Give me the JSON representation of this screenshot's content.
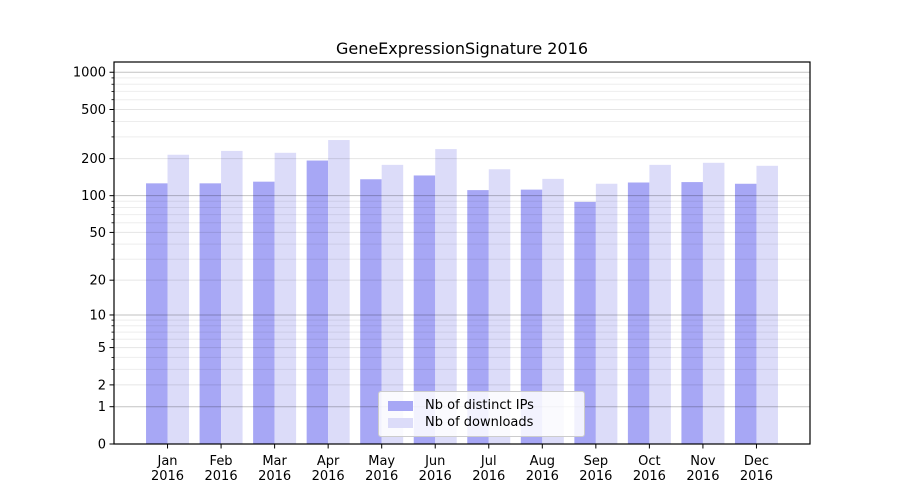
{
  "chart_data": {
    "type": "bar",
    "title": "GeneExpressionSignature 2016",
    "categories": [
      "Jan",
      "Feb",
      "Mar",
      "Apr",
      "May",
      "Jun",
      "Jul",
      "Aug",
      "Sep",
      "Oct",
      "Nov",
      "Dec"
    ],
    "category_year": "2016",
    "series": [
      {
        "name": "Nb of distinct IPs",
        "color": "#a7a7f5",
        "values": [
          126,
          126,
          130,
          193,
          136,
          146,
          111,
          112,
          89,
          128,
          129,
          125
        ]
      },
      {
        "name": "Nb of downloads",
        "color": "#dcdcf9",
        "values": [
          215,
          231,
          223,
          283,
          178,
          239,
          164,
          137,
          125,
          178,
          185,
          175
        ]
      }
    ],
    "xlabel": "",
    "ylabel": "",
    "yscale": "log1p",
    "ylim": [
      0,
      1210
    ],
    "yticks": [
      0,
      1,
      2,
      5,
      10,
      20,
      50,
      100,
      200,
      500,
      1000
    ],
    "decade_ticks": [
      1,
      10,
      100,
      1000
    ],
    "grid": true,
    "legend_position": "lower center",
    "text_color": "#000000",
    "spine_color": "#000000"
  }
}
